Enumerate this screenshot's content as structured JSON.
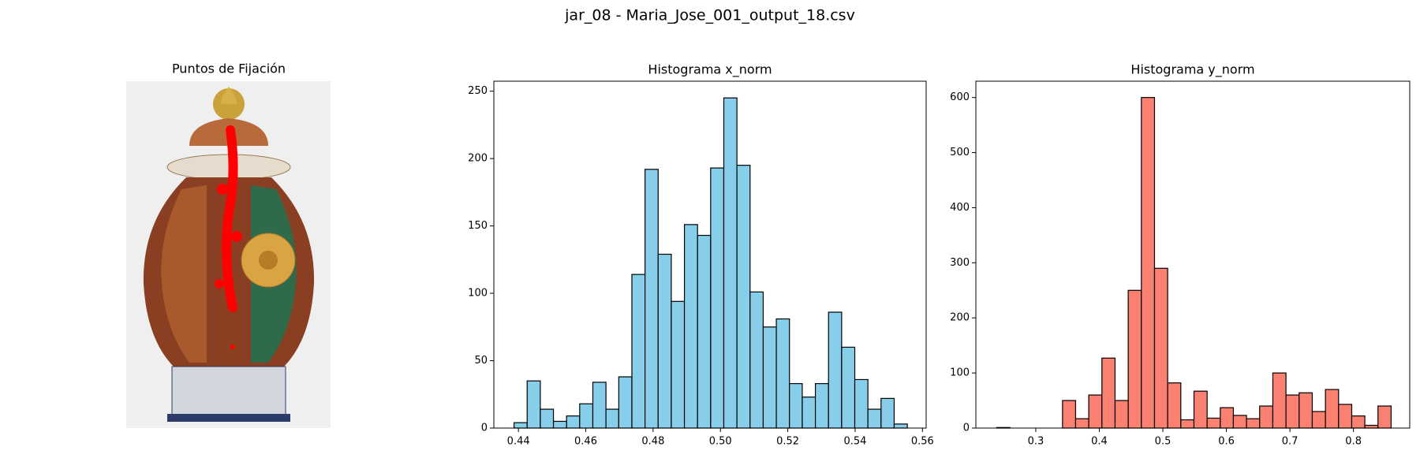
{
  "figure_title": "jar_08 - Maria_Jose_001_output_18.csv",
  "chart_data": [
    {
      "type": "image",
      "title": "Puntos de Fijación"
    },
    {
      "type": "histogram",
      "title": "Histograma x_norm",
      "color": "#87ceeb",
      "edgecolor": "#000000",
      "bins": [
        0.4387,
        0.4426,
        0.4465,
        0.4504,
        0.4543,
        0.4582,
        0.4621,
        0.466,
        0.4698,
        0.4737,
        0.4776,
        0.4815,
        0.4854,
        0.4893,
        0.4932,
        0.4971,
        0.501,
        0.5049,
        0.5088,
        0.5127,
        0.5166,
        0.5205,
        0.5243,
        0.5282,
        0.5321,
        0.536,
        0.5399,
        0.5438,
        0.5477,
        0.5516,
        0.5555
      ],
      "values": [
        4,
        35,
        14,
        5,
        9,
        18,
        34,
        14,
        38,
        114,
        192,
        129,
        94,
        151,
        143,
        193,
        245,
        195,
        101,
        75,
        81,
        33,
        23,
        33,
        86,
        60,
        36,
        14,
        22,
        3
      ],
      "xlim": [
        0.4327,
        0.5611
      ],
      "xticks": [
        0.44,
        0.46,
        0.48,
        {
          "value": 0.5,
          "label": "0.50"
        },
        0.52,
        0.54,
        0.56
      ],
      "ylim": [
        0,
        257.4
      ],
      "yticks": [
        0,
        50,
        100,
        150,
        200,
        250
      ]
    },
    {
      "type": "histogram",
      "title": "Histograma y_norm",
      "color": "#fa8072",
      "edgecolor": "#000000",
      "bins": [
        0.2386,
        0.2593,
        0.28,
        0.3007,
        0.3214,
        0.3421,
        0.3627,
        0.3834,
        0.4041,
        0.4248,
        0.4455,
        0.4662,
        0.4869,
        0.5076,
        0.5283,
        0.549,
        0.5697,
        0.5904,
        0.611,
        0.6317,
        0.6524,
        0.6731,
        0.6938,
        0.7145,
        0.7352,
        0.7559,
        0.7766,
        0.7973,
        0.8179,
        0.8386,
        0.8593
      ],
      "values": [
        1,
        0,
        0,
        0,
        0,
        50,
        17,
        60,
        127,
        50,
        250,
        600,
        290,
        82,
        15,
        67,
        18,
        37,
        23,
        17,
        40,
        100,
        60,
        64,
        30,
        70,
        43,
        22,
        5,
        40
      ],
      "xlim": [
        0.2057,
        0.8886
      ],
      "xticks": [
        0.3,
        0.4,
        0.5,
        0.6,
        0.7,
        0.8
      ],
      "ylim": [
        0,
        629.6
      ],
      "yticks": [
        0,
        100,
        200,
        300,
        400,
        500,
        600
      ]
    }
  ]
}
